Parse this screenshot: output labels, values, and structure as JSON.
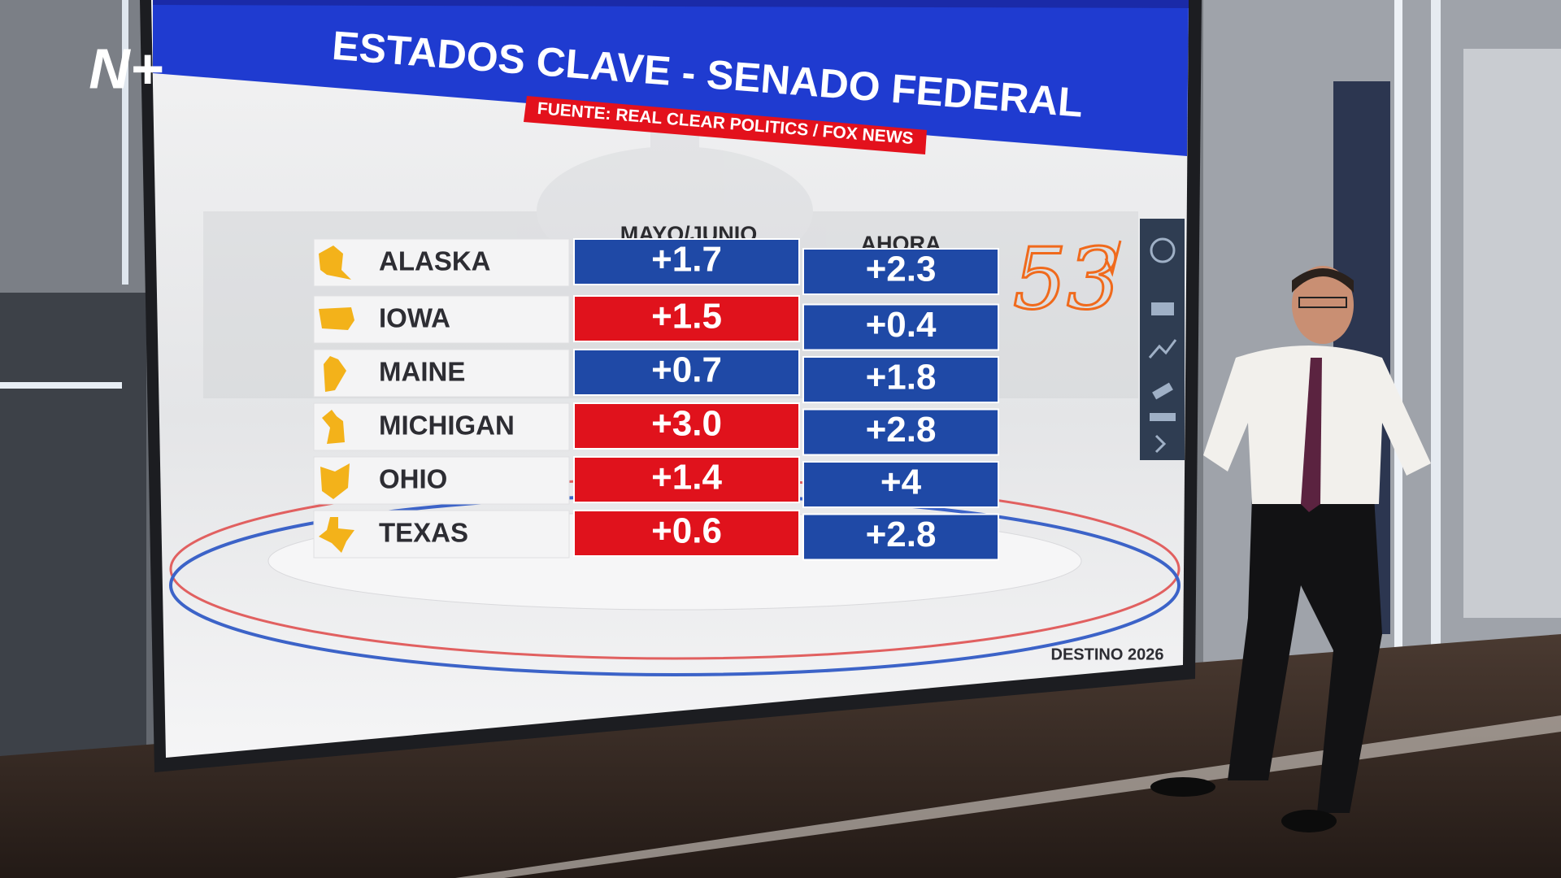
{
  "logo": "N+",
  "header": {
    "title": "ESTADOS CLAVE - SENADO FEDERAL",
    "source": "FUENTE: REAL CLEAR POLITICS  / FOX NEWS"
  },
  "table": {
    "columns": [
      "MAYO/JUNIO",
      "AHORA"
    ],
    "rows": [
      {
        "state": "ALASKA",
        "cells": [
          {
            "text": "+1.7",
            "color": "#1f49a6"
          },
          {
            "text": "+2.3",
            "color": "#1f49a6"
          }
        ]
      },
      {
        "state": "IOWA",
        "cells": [
          {
            "text": "+1.5",
            "color": "#e0121c"
          },
          {
            "text": "+0.4",
            "color": "#1f49a6"
          }
        ]
      },
      {
        "state": "MAINE",
        "cells": [
          {
            "text": "+0.7",
            "color": "#1f49a6"
          },
          {
            "text": "+1.8",
            "color": "#1f49a6"
          }
        ]
      },
      {
        "state": "MICHIGAN",
        "cells": [
          {
            "text": "+3.0",
            "color": "#e0121c"
          },
          {
            "text": "+2.8",
            "color": "#1f49a6"
          }
        ]
      },
      {
        "state": "OHIO",
        "cells": [
          {
            "text": "+1.4",
            "color": "#e0121c"
          },
          {
            "text": "+4",
            "color": "#1f49a6"
          }
        ]
      },
      {
        "state": "TEXAS",
        "cells": [
          {
            "text": "+0.6",
            "color": "#e0121c"
          },
          {
            "text": "+2.8",
            "color": "#1f49a6"
          }
        ]
      }
    ]
  },
  "annotation": "53",
  "brand": "DESTINO 2026"
}
